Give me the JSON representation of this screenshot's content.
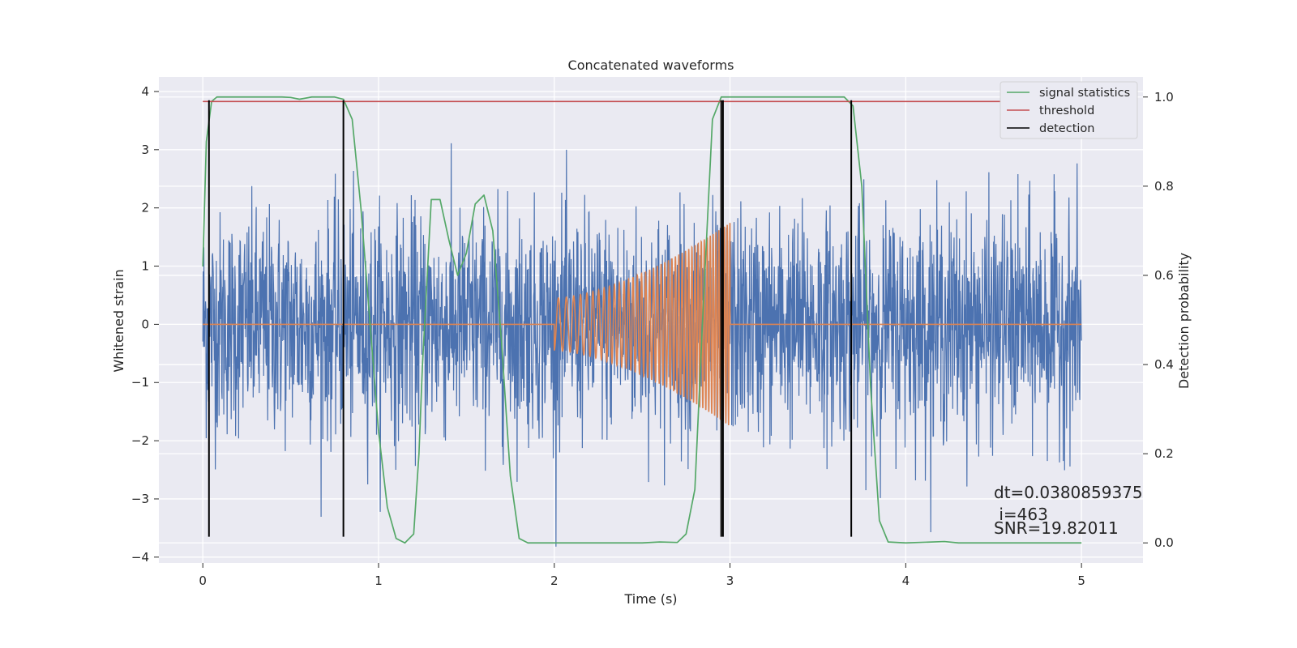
{
  "chart_data": {
    "type": "line",
    "title": "Concatenated waveforms",
    "xlabel": "Time (s)",
    "ylabel": "Whitened strain",
    "y2label": "Detection probability",
    "xlim": [
      -0.25,
      5.35
    ],
    "ylim": [
      -4.1,
      4.25
    ],
    "y2lim": [
      -0.045,
      1.045
    ],
    "x_ticks": [
      0,
      1,
      2,
      3,
      4,
      5
    ],
    "y_ticks": [
      -4,
      -3,
      -2,
      -1,
      0,
      1,
      2,
      3,
      4
    ],
    "y2_ticks": [
      0.0,
      0.2,
      0.4,
      0.6,
      0.8,
      1.0
    ],
    "x_tick_labels": [
      "0",
      "1",
      "2",
      "3",
      "4",
      "5"
    ],
    "y_tick_labels": [
      "−4",
      "−3",
      "−2",
      "−1",
      "0",
      "1",
      "2",
      "3",
      "4"
    ],
    "y2_tick_labels": [
      "0.0",
      "0.2",
      "0.4",
      "0.6",
      "0.8",
      "1.0"
    ],
    "grid": true,
    "legend_position": "top-right",
    "colors": {
      "background": "#eaeaf2",
      "grid": "#ffffff",
      "strain": "#4c72b0",
      "injection": "#dd8452",
      "signal_statistics": "#55a868",
      "threshold": "#c44e52",
      "detection": "#000000"
    },
    "series": [
      {
        "name": "",
        "description_key": "strain",
        "axis": "left",
        "x_range": [
          0,
          5
        ],
        "amplitude_typical": 2.0,
        "amplitude_peak": 3.9
      },
      {
        "name": "",
        "description_key": "injection",
        "axis": "left",
        "x_start": 2.0,
        "x_end": 3.0,
        "amp_start": 0.45,
        "amp_end": 1.75,
        "freq_start": 20,
        "freq_end": 65
      },
      {
        "name": "signal statistics",
        "axis": "right",
        "points": [
          [
            0.0,
            0.62
          ],
          [
            0.02,
            0.9
          ],
          [
            0.05,
            0.99
          ],
          [
            0.08,
            1.0
          ],
          [
            0.45,
            1.0
          ],
          [
            0.5,
            0.999
          ],
          [
            0.55,
            0.995
          ],
          [
            0.62,
            1.0
          ],
          [
            0.75,
            1.0
          ],
          [
            0.8,
            0.995
          ],
          [
            0.85,
            0.95
          ],
          [
            0.9,
            0.75
          ],
          [
            0.95,
            0.5
          ],
          [
            1.0,
            0.25
          ],
          [
            1.05,
            0.08
          ],
          [
            1.1,
            0.01
          ],
          [
            1.15,
            0.0
          ],
          [
            1.2,
            0.02
          ],
          [
            1.23,
            0.2
          ],
          [
            1.25,
            0.4
          ],
          [
            1.3,
            0.77
          ],
          [
            1.35,
            0.77
          ],
          [
            1.4,
            0.68
          ],
          [
            1.45,
            0.6
          ],
          [
            1.5,
            0.65
          ],
          [
            1.55,
            0.76
          ],
          [
            1.6,
            0.78
          ],
          [
            1.65,
            0.7
          ],
          [
            1.7,
            0.45
          ],
          [
            1.75,
            0.15
          ],
          [
            1.8,
            0.01
          ],
          [
            1.85,
            0.0
          ],
          [
            2.5,
            0.0
          ],
          [
            2.6,
            0.002
          ],
          [
            2.7,
            0.001
          ],
          [
            2.75,
            0.02
          ],
          [
            2.8,
            0.12
          ],
          [
            2.85,
            0.55
          ],
          [
            2.9,
            0.95
          ],
          [
            2.95,
            1.0
          ],
          [
            3.5,
            1.0
          ],
          [
            3.65,
            1.0
          ],
          [
            3.7,
            0.98
          ],
          [
            3.75,
            0.8
          ],
          [
            3.8,
            0.35
          ],
          [
            3.85,
            0.05
          ],
          [
            3.9,
            0.002
          ],
          [
            4.0,
            0.0
          ],
          [
            4.22,
            0.003
          ],
          [
            4.3,
            0.0
          ],
          [
            5.0,
            0.0
          ]
        ]
      },
      {
        "name": "threshold",
        "axis": "right",
        "points": [
          [
            0.0,
            0.99
          ],
          [
            5.0,
            0.99
          ]
        ]
      }
    ],
    "detections": {
      "name": "detection",
      "x": [
        0.035,
        0.8,
        2.95,
        2.96,
        3.69
      ],
      "y_from": -3.65,
      "y_to": 3.85
    },
    "annotations": [
      "dt=0.0380859375",
      " i=463",
      "SNR=19.82011"
    ]
  }
}
